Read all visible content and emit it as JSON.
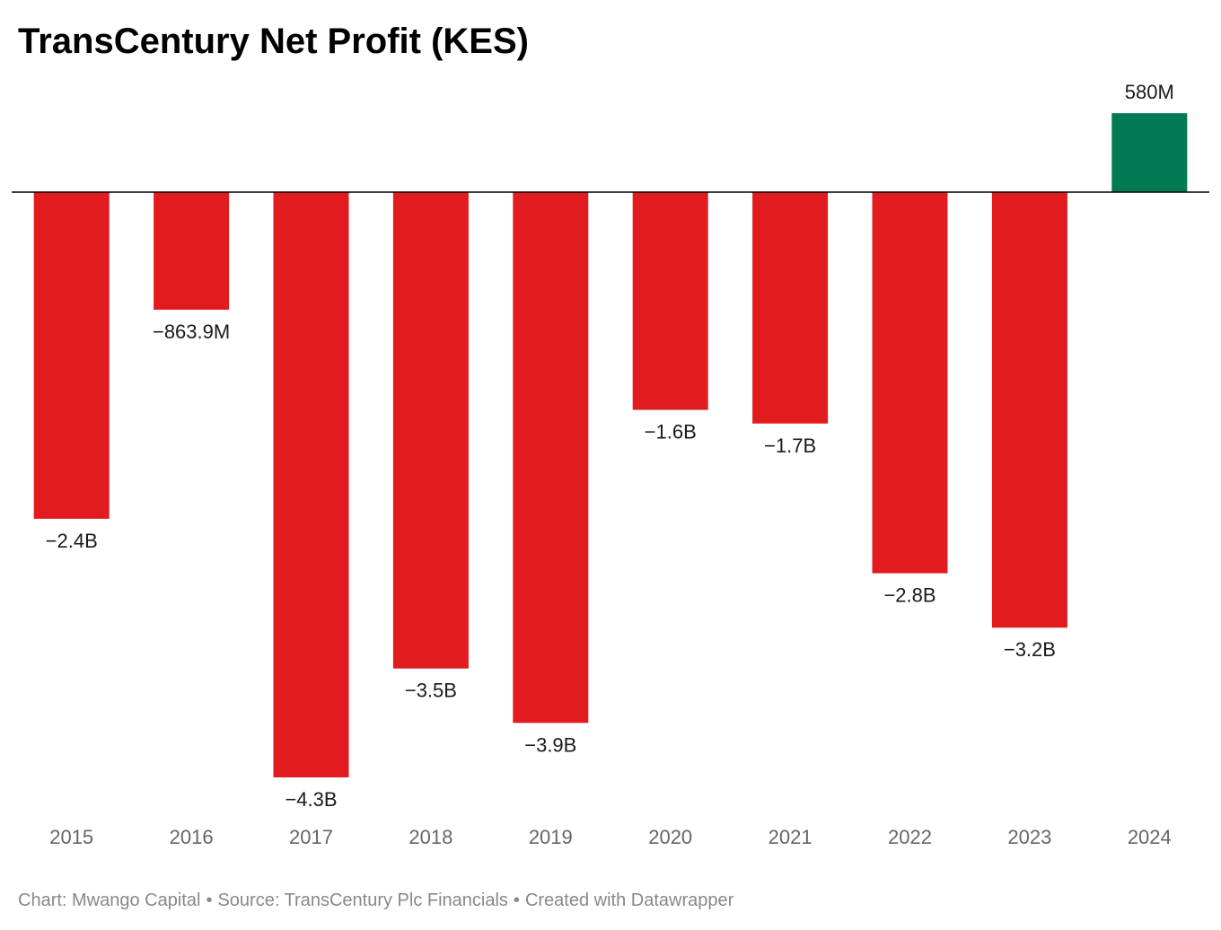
{
  "chart_data": {
    "type": "bar",
    "title": "TransCentury Net Profit (KES)",
    "categories": [
      "2015",
      "2016",
      "2017",
      "2018",
      "2019",
      "2020",
      "2021",
      "2022",
      "2023",
      "2024"
    ],
    "values": [
      -2.4,
      -0.8639,
      -4.3,
      -3.5,
      -3.9,
      -1.6,
      -1.7,
      -2.8,
      -3.2,
      0.58
    ],
    "unit": "billion KES",
    "value_labels": [
      "−2.4B",
      "−863.9M",
      "−4.3B",
      "−3.5B",
      "−3.9B",
      "−1.6B",
      "−1.7B",
      "−2.8B",
      "−3.2B",
      "580M"
    ],
    "xlabel": "",
    "ylabel": "",
    "ylim": [
      -4.3,
      0.58
    ],
    "grid": false,
    "colors": {
      "negative": "#e11b1e",
      "positive": "#017a53",
      "baseline": "#000000",
      "value_label": "#1a1a1a",
      "tick_label": "#666666"
    }
  },
  "footer": {
    "chart_credit": "Chart: Mwango Capital",
    "source": "Source: TransCentury Plc Financials",
    "tool": "Created with Datawrapper",
    "separator": "•"
  }
}
